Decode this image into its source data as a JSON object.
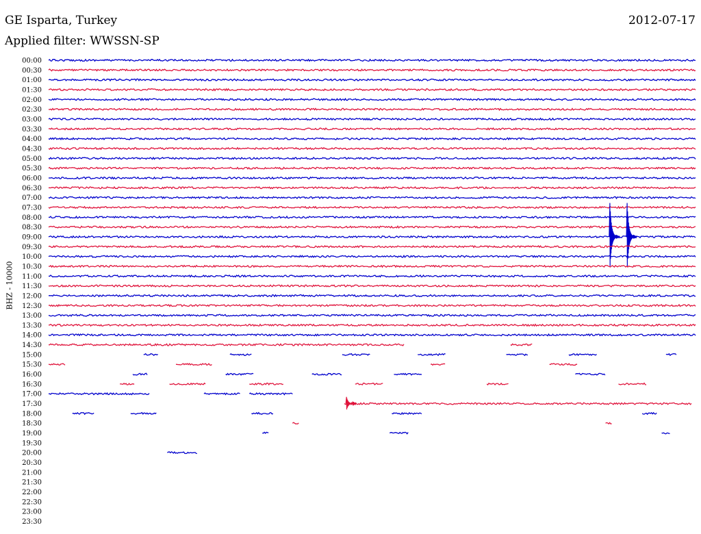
{
  "header": {
    "station": "GE Isparta, Turkey",
    "date": "2012-07-17",
    "filter": "Applied filter: WWSSN-SP"
  },
  "chart_data": {
    "type": "line",
    "title": "GE Isparta, Turkey",
    "ylabel": "BHZ - 10000",
    "row_minutes": 30,
    "colors": {
      "even": "#0000cc",
      "odd": "#e0143c"
    },
    "rows": [
      {
        "label": "00:00",
        "segments": [
          [
            0,
            30
          ]
        ]
      },
      {
        "label": "00:30",
        "segments": [
          [
            0,
            30
          ]
        ]
      },
      {
        "label": "01:00",
        "segments": [
          [
            0,
            30
          ]
        ]
      },
      {
        "label": "01:30",
        "segments": [
          [
            0,
            30
          ]
        ]
      },
      {
        "label": "02:00",
        "segments": [
          [
            0,
            30
          ]
        ]
      },
      {
        "label": "02:30",
        "segments": [
          [
            0,
            30
          ]
        ]
      },
      {
        "label": "03:00",
        "segments": [
          [
            0,
            30
          ]
        ]
      },
      {
        "label": "03:30",
        "segments": [
          [
            0,
            30
          ]
        ]
      },
      {
        "label": "04:00",
        "segments": [
          [
            0,
            30
          ]
        ]
      },
      {
        "label": "04:30",
        "segments": [
          [
            0,
            30
          ]
        ]
      },
      {
        "label": "05:00",
        "segments": [
          [
            0,
            30
          ]
        ]
      },
      {
        "label": "05:30",
        "segments": [
          [
            0,
            30
          ]
        ]
      },
      {
        "label": "06:00",
        "segments": [
          [
            0,
            30
          ]
        ]
      },
      {
        "label": "06:30",
        "segments": [
          [
            0,
            30
          ]
        ]
      },
      {
        "label": "07:00",
        "segments": [
          [
            0,
            30
          ]
        ]
      },
      {
        "label": "07:30",
        "segments": [
          [
            0,
            30
          ]
        ]
      },
      {
        "label": "08:00",
        "segments": [
          [
            0,
            30
          ]
        ]
      },
      {
        "label": "08:30",
        "segments": [
          [
            0,
            30
          ]
        ]
      },
      {
        "label": "09:00",
        "segments": [
          [
            0,
            30
          ]
        ],
        "events": [
          {
            "t": 26.0,
            "amp": 3
          },
          {
            "t": 26.8,
            "amp": 3
          }
        ]
      },
      {
        "label": "09:30",
        "segments": [
          [
            0,
            30
          ]
        ]
      },
      {
        "label": "10:00",
        "segments": [
          [
            0,
            30
          ]
        ]
      },
      {
        "label": "10:30",
        "segments": [
          [
            0,
            30
          ]
        ]
      },
      {
        "label": "11:00",
        "segments": [
          [
            0,
            30
          ]
        ]
      },
      {
        "label": "11:30",
        "segments": [
          [
            0,
            30
          ]
        ]
      },
      {
        "label": "12:00",
        "segments": [
          [
            0,
            30
          ]
        ]
      },
      {
        "label": "12:30",
        "segments": [
          [
            0,
            30
          ]
        ]
      },
      {
        "label": "13:00",
        "segments": [
          [
            0,
            30
          ]
        ]
      },
      {
        "label": "13:30",
        "segments": [
          [
            0,
            30
          ]
        ]
      },
      {
        "label": "14:00",
        "segments": [
          [
            0,
            30
          ]
        ]
      },
      {
        "label": "14:30",
        "segments": [
          [
            0,
            16.5
          ],
          [
            21.4,
            22.4
          ]
        ]
      },
      {
        "label": "15:00",
        "segments": [
          [
            4.4,
            5.1
          ],
          [
            8.4,
            9.4
          ],
          [
            13.6,
            14.9
          ],
          [
            17.1,
            18.4
          ],
          [
            21.2,
            22.2
          ],
          [
            24.1,
            25.4
          ],
          [
            28.6,
            29.1
          ]
        ]
      },
      {
        "label": "15:30",
        "segments": [
          [
            0,
            0.8
          ],
          [
            5.9,
            7.6
          ],
          [
            17.7,
            18.4
          ],
          [
            23.2,
            24.5
          ]
        ]
      },
      {
        "label": "16:00",
        "segments": [
          [
            3.9,
            4.6
          ],
          [
            8.2,
            9.5
          ],
          [
            12.2,
            13.6
          ],
          [
            16.0,
            17.3
          ],
          [
            24.4,
            25.8
          ]
        ]
      },
      {
        "label": "16:30",
        "segments": [
          [
            3.3,
            4.0
          ],
          [
            5.6,
            7.3
          ],
          [
            9.3,
            10.9
          ],
          [
            14.2,
            15.5
          ],
          [
            20.3,
            21.3
          ],
          [
            26.4,
            27.7
          ]
        ]
      },
      {
        "label": "17:00",
        "segments": [
          [
            0,
            4.7
          ],
          [
            7.2,
            8.9
          ],
          [
            9.3,
            11.3
          ]
        ]
      },
      {
        "label": "17:30",
        "segments": [
          [
            13.7,
            29.8
          ]
        ],
        "events": [
          {
            "t": 13.8,
            "amp": 0.6
          }
        ]
      },
      {
        "label": "18:00",
        "segments": [
          [
            1.1,
            2.1
          ],
          [
            3.8,
            5.0
          ],
          [
            9.4,
            10.4
          ],
          [
            15.9,
            17.3
          ],
          [
            27.5,
            28.2
          ]
        ]
      },
      {
        "label": "18:30",
        "segments": [
          [
            11.3,
            11.6
          ],
          [
            25.8,
            26.1
          ]
        ]
      },
      {
        "label": "19:00",
        "segments": [
          [
            9.9,
            10.2
          ],
          [
            15.8,
            16.7
          ],
          [
            28.4,
            28.8
          ]
        ]
      },
      {
        "label": "19:30",
        "segments": []
      },
      {
        "label": "20:00",
        "segments": [
          [
            5.5,
            6.9
          ]
        ]
      },
      {
        "label": "20:30",
        "segments": []
      },
      {
        "label": "21:00",
        "segments": []
      },
      {
        "label": "21:30",
        "segments": []
      },
      {
        "label": "22:00",
        "segments": []
      },
      {
        "label": "22:30",
        "segments": []
      },
      {
        "label": "23:00",
        "segments": []
      },
      {
        "label": "23:30",
        "segments": []
      }
    ]
  }
}
